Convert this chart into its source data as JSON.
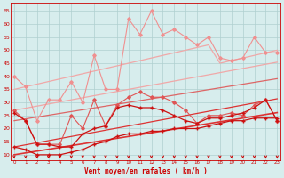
{
  "x": [
    0,
    1,
    2,
    3,
    4,
    5,
    6,
    7,
    8,
    9,
    10,
    11,
    12,
    13,
    14,
    15,
    16,
    17,
    18,
    19,
    20,
    21,
    22,
    23
  ],
  "series": [
    {
      "name": "light_pink_upper",
      "color": "#f09090",
      "linewidth": 0.8,
      "marker": "D",
      "markersize": 1.8,
      "zorder": 3,
      "values": [
        40,
        36,
        23,
        31,
        31,
        38,
        30,
        48,
        35,
        35,
        62,
        56,
        65,
        56,
        58,
        55,
        52,
        55,
        47,
        46,
        47,
        55,
        49,
        49
      ]
    },
    {
      "name": "pink_mid1",
      "color": "#e05555",
      "linewidth": 0.8,
      "marker": "D",
      "markersize": 1.8,
      "zorder": 3,
      "values": [
        27,
        23,
        14,
        14,
        14,
        25,
        20,
        31,
        21,
        29,
        32,
        34,
        32,
        32,
        30,
        27,
        22,
        25,
        25,
        26,
        25,
        29,
        31,
        23
      ]
    },
    {
      "name": "diagonal_upper",
      "color": "#f0a8a8",
      "linewidth": 0.9,
      "marker": null,
      "markersize": 0,
      "zorder": 2,
      "values": [
        35.0,
        36.0,
        37.0,
        38.0,
        39.0,
        40.0,
        41.0,
        42.0,
        43.0,
        44.0,
        45.0,
        46.0,
        47.0,
        48.0,
        49.0,
        50.0,
        51.0,
        52.0,
        45.0,
        46.0,
        47.0,
        48.0,
        49.0,
        50.0
      ]
    },
    {
      "name": "diagonal_mid_upper",
      "color": "#f0a8a8",
      "linewidth": 0.9,
      "marker": null,
      "markersize": 0,
      "zorder": 2,
      "values": [
        27.0,
        27.8,
        28.6,
        29.4,
        30.2,
        31.0,
        31.8,
        32.6,
        33.4,
        34.2,
        35.0,
        35.8,
        36.6,
        37.4,
        38.2,
        39.0,
        39.8,
        40.6,
        41.4,
        42.2,
        43.0,
        43.8,
        44.6,
        45.4
      ]
    },
    {
      "name": "diagonal_mid_lower",
      "color": "#dd6666",
      "linewidth": 0.9,
      "marker": null,
      "markersize": 0,
      "zorder": 2,
      "values": [
        23.0,
        23.7,
        24.4,
        25.1,
        25.8,
        26.5,
        27.2,
        27.9,
        28.6,
        29.3,
        30.0,
        30.7,
        31.4,
        32.1,
        32.8,
        33.5,
        34.2,
        34.9,
        35.6,
        36.3,
        37.0,
        37.7,
        38.4,
        39.1
      ]
    },
    {
      "name": "diagonal_lower1",
      "color": "#dd3333",
      "linewidth": 0.9,
      "marker": null,
      "markersize": 0,
      "zorder": 2,
      "values": [
        13.0,
        13.8,
        14.6,
        15.4,
        16.2,
        17.0,
        17.8,
        18.6,
        19.4,
        20.2,
        21.0,
        21.8,
        22.6,
        23.4,
        24.2,
        25.0,
        25.8,
        26.6,
        27.4,
        28.2,
        29.0,
        29.8,
        30.6,
        31.4
      ]
    },
    {
      "name": "diagonal_lower2",
      "color": "#dd3333",
      "linewidth": 1.2,
      "marker": null,
      "markersize": 0,
      "zorder": 2,
      "values": [
        10.0,
        10.7,
        11.4,
        12.1,
        12.8,
        13.5,
        14.2,
        14.9,
        15.6,
        16.3,
        17.0,
        17.7,
        18.4,
        19.1,
        19.8,
        20.5,
        21.2,
        21.9,
        22.6,
        23.3,
        24.0,
        24.7,
        25.4,
        26.1
      ]
    },
    {
      "name": "red_upper_marker",
      "color": "#cc1111",
      "linewidth": 0.9,
      "marker": "+",
      "markersize": 2.5,
      "zorder": 4,
      "values": [
        26,
        23,
        14,
        14,
        13,
        13,
        18,
        20,
        21,
        28,
        29,
        28,
        28,
        27,
        25,
        23,
        22,
        24,
        24,
        25,
        26,
        28,
        31,
        23
      ]
    },
    {
      "name": "red_lower_marker",
      "color": "#cc1111",
      "linewidth": 0.9,
      "marker": "+",
      "markersize": 2.5,
      "zorder": 4,
      "values": [
        13,
        12,
        10,
        10,
        10,
        11,
        12,
        14,
        15,
        17,
        18,
        18,
        19,
        19,
        20,
        20,
        20,
        21,
        22,
        23,
        23,
        24,
        24,
        24
      ]
    }
  ],
  "xlim": [
    -0.3,
    23.3
  ],
  "ylim": [
    8,
    68
  ],
  "yticks": [
    10,
    15,
    20,
    25,
    30,
    35,
    40,
    45,
    50,
    55,
    60,
    65
  ],
  "xticks": [
    0,
    1,
    2,
    3,
    4,
    5,
    6,
    7,
    8,
    9,
    10,
    11,
    12,
    13,
    14,
    15,
    16,
    17,
    18,
    19,
    20,
    21,
    22,
    23
  ],
  "xlabel": "Vent moyen/en rafales ( km/h )",
  "background_color": "#d7eded",
  "grid_color": "#afd0d0",
  "tick_color": "#cc0000",
  "label_color": "#cc0000"
}
